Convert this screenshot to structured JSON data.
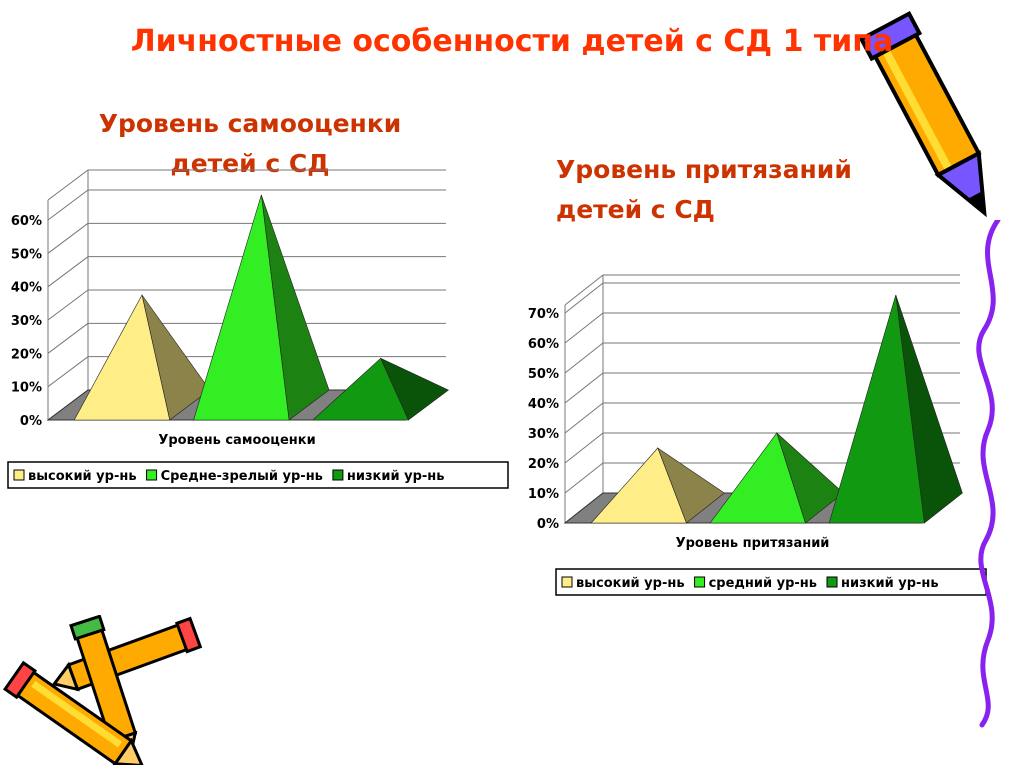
{
  "title": "Личностные особенности детей с СД 1 типа",
  "chart1_heading": [
    "Уровень самооценки",
    "детей с СД"
  ],
  "chart2_heading": [
    "Уровень притязаний",
    "детей с СД"
  ],
  "chart_data": [
    {
      "type": "bar",
      "style": "3d-pyramid",
      "title": "",
      "xlabel": "Уровень самооценки",
      "ylabel": "",
      "ylim": [
        0,
        60
      ],
      "yticks": [
        "0%",
        "10%",
        "20%",
        "30%",
        "40%",
        "50%",
        "60%"
      ],
      "legend_position": "bottom",
      "series": [
        {
          "name": "высокий ур-нь",
          "values": [
            33
          ],
          "color": "#ffee88"
        },
        {
          "name": "Средне-зрелый ур-нь",
          "values": [
            63
          ],
          "color": "#33ee22"
        },
        {
          "name": "низкий ур-нь",
          "values": [
            14
          ],
          "color": "#119911"
        }
      ],
      "grid": true
    },
    {
      "type": "bar",
      "style": "3d-pyramid",
      "title": "",
      "xlabel": "Уровень притязаний",
      "ylabel": "",
      "ylim": [
        0,
        70
      ],
      "yticks": [
        "0%",
        "10%",
        "20%",
        "30%",
        "40%",
        "50%",
        "60%",
        "70%"
      ],
      "legend_position": "bottom",
      "series": [
        {
          "name": "высокий ур-нь",
          "values": [
            20
          ],
          "color": "#ffee88"
        },
        {
          "name": "средний ур-нь",
          "values": [
            25
          ],
          "color": "#33ee22"
        },
        {
          "name": "низкий ур-нь",
          "values": [
            71
          ],
          "color": "#119911"
        }
      ],
      "grid": true
    }
  ]
}
